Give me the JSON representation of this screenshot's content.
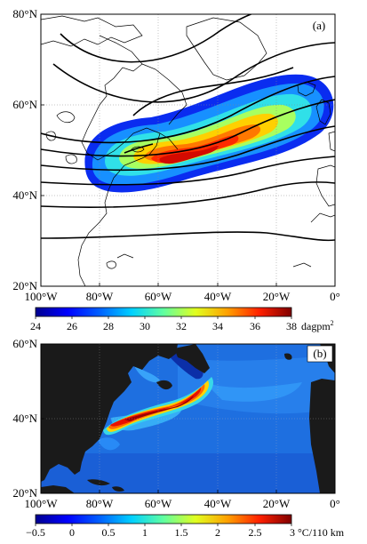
{
  "panel_a": {
    "label": "(a)",
    "lat_labels": [
      "60°N",
      "40°N",
      "20°N"
    ],
    "lon_labels": [
      "100°W",
      "80°W",
      "60°W",
      "40°W",
      "20°W",
      "0°"
    ],
    "top_left_label": "80°N"
  },
  "colorbar_a": {
    "ticks": [
      "24",
      "26",
      "28",
      "30",
      "32",
      "34",
      "36",
      "38"
    ],
    "unit_text": "dagpm",
    "unit_sup": "2"
  },
  "panel_b": {
    "label": "(b)",
    "lat_labels": [
      "60°N",
      "40°N",
      "20°N"
    ],
    "lon_labels": [
      "100°W",
      "80°W",
      "60°W",
      "40°W",
      "20°W",
      "0°"
    ]
  },
  "colorbar_b": {
    "ticks": [
      "−0.5",
      "0",
      "0.5",
      "1",
      "1.5",
      "2",
      "2.5",
      "3"
    ],
    "unit": "°C/110 km"
  },
  "colors": {
    "land_b": "#1a1a1a",
    "ocean_b": "#1e6fe0",
    "jet": [
      "#00008f",
      "#0000ff",
      "#0080ff",
      "#00ffff",
      "#80ff80",
      "#ffff00",
      "#ff8000",
      "#ff0000",
      "#800000"
    ]
  }
}
